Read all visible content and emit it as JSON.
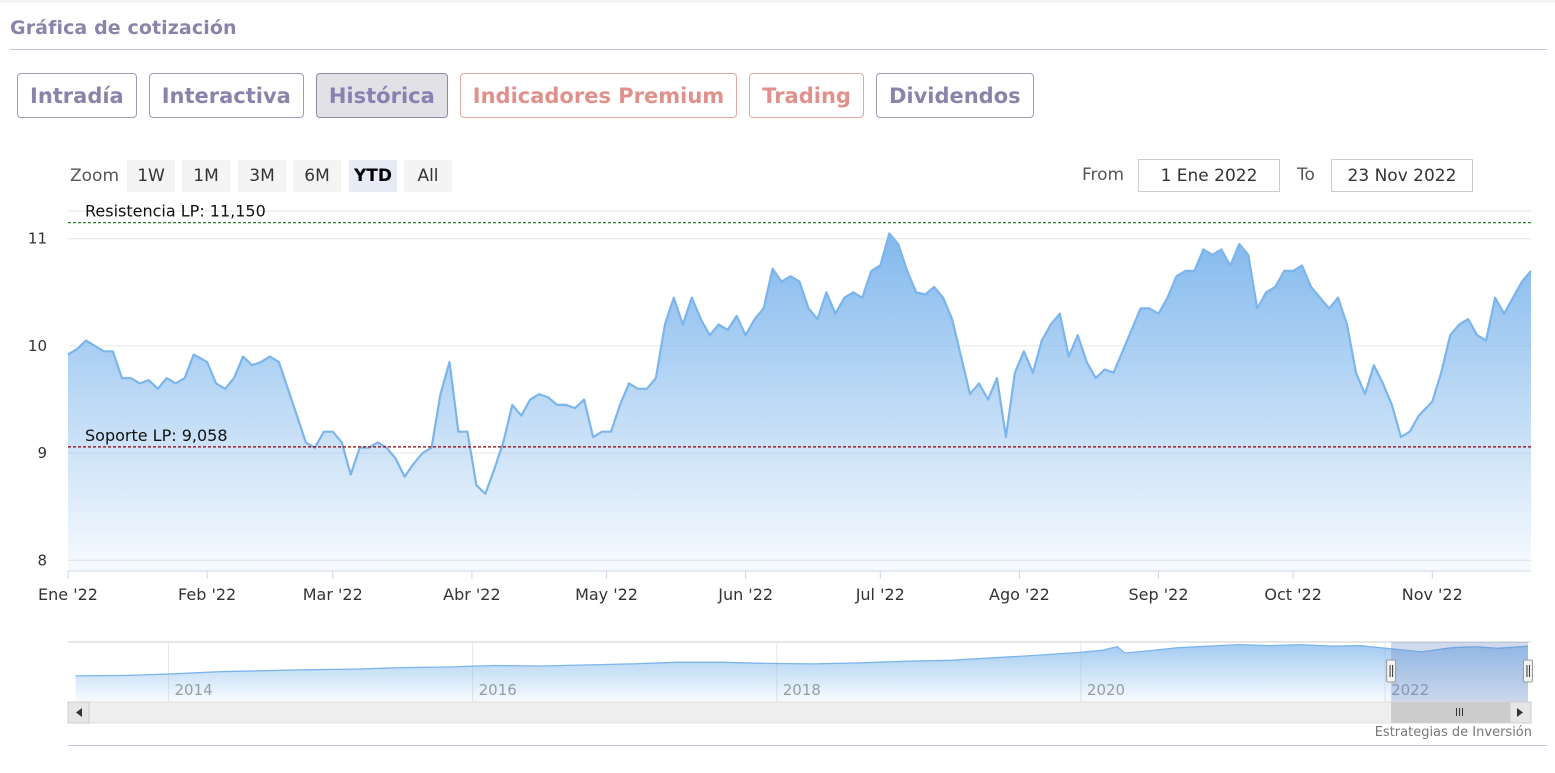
{
  "section": {
    "title": "Gráfica de cotización"
  },
  "tabs": [
    {
      "label": "Intradía",
      "active": false,
      "premium": false
    },
    {
      "label": "Interactiva",
      "active": false,
      "premium": false
    },
    {
      "label": "Histórica",
      "active": true,
      "premium": false
    },
    {
      "label": "Indicadores Premium",
      "active": false,
      "premium": true
    },
    {
      "label": "Trading",
      "active": false,
      "premium": true
    },
    {
      "label": "Dividendos",
      "active": false,
      "premium": false
    }
  ],
  "range_selector": {
    "zoom_label": "Zoom",
    "buttons": [
      "1W",
      "1M",
      "3M",
      "6M",
      "YTD",
      "All"
    ],
    "selected": "YTD",
    "from_label": "From",
    "from_value": "1 Ene 2022",
    "to_label": "To",
    "to_value": "23 Nov 2022"
  },
  "credits": "Estrategias de Inversión",
  "colors": {
    "accent": "#8a84ab",
    "premium": "#e1918b",
    "series_line": "#7cb5ec",
    "resistance_line": "#2e7d32",
    "support_line": "#8b0000"
  },
  "chart_data": {
    "type": "area",
    "series_name": "",
    "x_ticks": [
      "Ene '22",
      "Feb '22",
      "Mar '22",
      "Abr '22",
      "May '22",
      "Jun '22",
      "Jul '22",
      "Ago '22",
      "Sep '22",
      "Oct '22",
      "Nov '22"
    ],
    "x_tick_dates": [
      "2022-01-01",
      "2022-02-01",
      "2022-03-01",
      "2022-04-01",
      "2022-05-01",
      "2022-06-01",
      "2022-07-01",
      "2022-08-01",
      "2022-09-01",
      "2022-10-01",
      "2022-11-01"
    ],
    "y_ticks": [
      8,
      9,
      10,
      11
    ],
    "ylim": [
      7.9,
      11.1
    ],
    "xlim": [
      "2022-01-01",
      "2022-11-23"
    ],
    "grid": true,
    "plot_lines": [
      {
        "label": "Resistencia LP: 11,150",
        "value": 11.15
      },
      {
        "label": "Soporte LP: 9,058",
        "value": 9.058
      }
    ],
    "points": [
      [
        "2022-01-01",
        9.92
      ],
      [
        "2022-01-03",
        9.97
      ],
      [
        "2022-01-05",
        10.05
      ],
      [
        "2022-01-07",
        10.0
      ],
      [
        "2022-01-09",
        9.95
      ],
      [
        "2022-01-11",
        9.95
      ],
      [
        "2022-01-13",
        9.7
      ],
      [
        "2022-01-15",
        9.7
      ],
      [
        "2022-01-17",
        9.65
      ],
      [
        "2022-01-19",
        9.68
      ],
      [
        "2022-01-21",
        9.6
      ],
      [
        "2022-01-23",
        9.7
      ],
      [
        "2022-01-25",
        9.65
      ],
      [
        "2022-01-27",
        9.7
      ],
      [
        "2022-01-29",
        9.92
      ],
      [
        "2022-02-01",
        9.85
      ],
      [
        "2022-02-03",
        9.65
      ],
      [
        "2022-02-05",
        9.6
      ],
      [
        "2022-02-07",
        9.7
      ],
      [
        "2022-02-09",
        9.9
      ],
      [
        "2022-02-11",
        9.82
      ],
      [
        "2022-02-13",
        9.85
      ],
      [
        "2022-02-15",
        9.9
      ],
      [
        "2022-02-17",
        9.85
      ],
      [
        "2022-02-19",
        9.6
      ],
      [
        "2022-02-21",
        9.35
      ],
      [
        "2022-02-23",
        9.1
      ],
      [
        "2022-02-25",
        9.05
      ],
      [
        "2022-02-27",
        9.2
      ],
      [
        "2022-03-01",
        9.2
      ],
      [
        "2022-03-03",
        9.1
      ],
      [
        "2022-03-05",
        8.8
      ],
      [
        "2022-03-07",
        9.05
      ],
      [
        "2022-03-09",
        9.05
      ],
      [
        "2022-03-11",
        9.1
      ],
      [
        "2022-03-13",
        9.05
      ],
      [
        "2022-03-15",
        8.95
      ],
      [
        "2022-03-17",
        8.78
      ],
      [
        "2022-03-19",
        8.9
      ],
      [
        "2022-03-21",
        9.0
      ],
      [
        "2022-03-23",
        9.05
      ],
      [
        "2022-03-25",
        9.55
      ],
      [
        "2022-03-27",
        9.85
      ],
      [
        "2022-03-29",
        9.2
      ],
      [
        "2022-03-31",
        9.2
      ],
      [
        "2022-04-02",
        8.7
      ],
      [
        "2022-04-04",
        8.62
      ],
      [
        "2022-04-06",
        8.85
      ],
      [
        "2022-04-08",
        9.1
      ],
      [
        "2022-04-10",
        9.45
      ],
      [
        "2022-04-12",
        9.35
      ],
      [
        "2022-04-14",
        9.5
      ],
      [
        "2022-04-16",
        9.55
      ],
      [
        "2022-04-18",
        9.52
      ],
      [
        "2022-04-20",
        9.45
      ],
      [
        "2022-04-22",
        9.45
      ],
      [
        "2022-04-24",
        9.42
      ],
      [
        "2022-04-26",
        9.5
      ],
      [
        "2022-04-28",
        9.15
      ],
      [
        "2022-04-30",
        9.2
      ],
      [
        "2022-05-02",
        9.2
      ],
      [
        "2022-05-04",
        9.45
      ],
      [
        "2022-05-06",
        9.65
      ],
      [
        "2022-05-08",
        9.6
      ],
      [
        "2022-05-10",
        9.6
      ],
      [
        "2022-05-12",
        9.7
      ],
      [
        "2022-05-14",
        10.2
      ],
      [
        "2022-05-16",
        10.45
      ],
      [
        "2022-05-18",
        10.2
      ],
      [
        "2022-05-20",
        10.45
      ],
      [
        "2022-05-22",
        10.25
      ],
      [
        "2022-05-24",
        10.1
      ],
      [
        "2022-05-26",
        10.2
      ],
      [
        "2022-05-28",
        10.15
      ],
      [
        "2022-05-30",
        10.28
      ],
      [
        "2022-06-01",
        10.1
      ],
      [
        "2022-06-03",
        10.25
      ],
      [
        "2022-06-05",
        10.35
      ],
      [
        "2022-06-07",
        10.72
      ],
      [
        "2022-06-09",
        10.6
      ],
      [
        "2022-06-11",
        10.65
      ],
      [
        "2022-06-13",
        10.6
      ],
      [
        "2022-06-15",
        10.35
      ],
      [
        "2022-06-17",
        10.25
      ],
      [
        "2022-06-19",
        10.5
      ],
      [
        "2022-06-21",
        10.3
      ],
      [
        "2022-06-23",
        10.45
      ],
      [
        "2022-06-25",
        10.5
      ],
      [
        "2022-06-27",
        10.45
      ],
      [
        "2022-06-29",
        10.7
      ],
      [
        "2022-07-01",
        10.75
      ],
      [
        "2022-07-03",
        11.05
      ],
      [
        "2022-07-05",
        10.95
      ],
      [
        "2022-07-07",
        10.7
      ],
      [
        "2022-07-09",
        10.5
      ],
      [
        "2022-07-11",
        10.48
      ],
      [
        "2022-07-13",
        10.55
      ],
      [
        "2022-07-15",
        10.45
      ],
      [
        "2022-07-17",
        10.25
      ],
      [
        "2022-07-19",
        9.9
      ],
      [
        "2022-07-21",
        9.55
      ],
      [
        "2022-07-23",
        9.65
      ],
      [
        "2022-07-25",
        9.5
      ],
      [
        "2022-07-27",
        9.7
      ],
      [
        "2022-07-29",
        9.15
      ],
      [
        "2022-07-31",
        9.75
      ],
      [
        "2022-08-02",
        9.95
      ],
      [
        "2022-08-04",
        9.75
      ],
      [
        "2022-08-06",
        10.05
      ],
      [
        "2022-08-08",
        10.2
      ],
      [
        "2022-08-10",
        10.3
      ],
      [
        "2022-08-12",
        9.9
      ],
      [
        "2022-08-14",
        10.1
      ],
      [
        "2022-08-16",
        9.85
      ],
      [
        "2022-08-18",
        9.7
      ],
      [
        "2022-08-20",
        9.78
      ],
      [
        "2022-08-22",
        9.75
      ],
      [
        "2022-08-24",
        9.95
      ],
      [
        "2022-08-26",
        10.15
      ],
      [
        "2022-08-28",
        10.35
      ],
      [
        "2022-08-30",
        10.35
      ],
      [
        "2022-09-01",
        10.3
      ],
      [
        "2022-09-03",
        10.45
      ],
      [
        "2022-09-05",
        10.65
      ],
      [
        "2022-09-07",
        10.7
      ],
      [
        "2022-09-09",
        10.7
      ],
      [
        "2022-09-11",
        10.9
      ],
      [
        "2022-09-13",
        10.85
      ],
      [
        "2022-09-15",
        10.9
      ],
      [
        "2022-09-17",
        10.75
      ],
      [
        "2022-09-19",
        10.95
      ],
      [
        "2022-09-21",
        10.85
      ],
      [
        "2022-09-23",
        10.35
      ],
      [
        "2022-09-25",
        10.5
      ],
      [
        "2022-09-27",
        10.55
      ],
      [
        "2022-09-29",
        10.7
      ],
      [
        "2022-10-01",
        10.7
      ],
      [
        "2022-10-03",
        10.75
      ],
      [
        "2022-10-05",
        10.55
      ],
      [
        "2022-10-07",
        10.45
      ],
      [
        "2022-10-09",
        10.35
      ],
      [
        "2022-10-11",
        10.45
      ],
      [
        "2022-10-13",
        10.2
      ],
      [
        "2022-10-15",
        9.75
      ],
      [
        "2022-10-17",
        9.55
      ],
      [
        "2022-10-19",
        9.82
      ],
      [
        "2022-10-21",
        9.65
      ],
      [
        "2022-10-23",
        9.45
      ],
      [
        "2022-10-25",
        9.15
      ],
      [
        "2022-10-27",
        9.2
      ],
      [
        "2022-10-29",
        9.35
      ],
      [
        "2022-11-01",
        9.48
      ],
      [
        "2022-11-03",
        9.75
      ],
      [
        "2022-11-05",
        10.1
      ],
      [
        "2022-11-07",
        10.2
      ],
      [
        "2022-11-09",
        10.25
      ],
      [
        "2022-11-11",
        10.1
      ],
      [
        "2022-11-13",
        10.05
      ],
      [
        "2022-11-15",
        10.45
      ],
      [
        "2022-11-17",
        10.3
      ],
      [
        "2022-11-19",
        10.45
      ],
      [
        "2022-11-21",
        10.6
      ],
      [
        "2022-11-23",
        10.7
      ]
    ],
    "navigator": {
      "x_ticks": [
        "2014",
        "2016",
        "2018",
        "2020",
        "2022"
      ],
      "x_tick_years": [
        2014,
        2016,
        2018,
        2020,
        2022
      ],
      "xlim_years": [
        2013.3,
        2022.92
      ],
      "ylim": [
        0,
        11.5
      ],
      "selection_years": [
        2022.0,
        2022.9
      ],
      "points": [
        [
          2013.35,
          5.0
        ],
        [
          2013.7,
          5.1
        ],
        [
          2014.0,
          5.4
        ],
        [
          2014.3,
          5.8
        ],
        [
          2014.6,
          6.0
        ],
        [
          2014.9,
          6.2
        ],
        [
          2015.2,
          6.3
        ],
        [
          2015.5,
          6.6
        ],
        [
          2015.8,
          6.7
        ],
        [
          2016.1,
          7.0
        ],
        [
          2016.4,
          6.9
        ],
        [
          2016.7,
          7.1
        ],
        [
          2017.0,
          7.3
        ],
        [
          2017.3,
          7.6
        ],
        [
          2017.6,
          7.6
        ],
        [
          2017.9,
          7.4
        ],
        [
          2018.2,
          7.3
        ],
        [
          2018.5,
          7.5
        ],
        [
          2018.8,
          7.8
        ],
        [
          2019.1,
          8.0
        ],
        [
          2019.4,
          8.5
        ],
        [
          2019.7,
          9.0
        ],
        [
          2019.95,
          9.5
        ],
        [
          2020.1,
          9.9
        ],
        [
          2020.2,
          10.6
        ],
        [
          2020.25,
          9.4
        ],
        [
          2020.4,
          9.8
        ],
        [
          2020.6,
          10.4
        ],
        [
          2020.8,
          10.7
        ],
        [
          2021.0,
          11.0
        ],
        [
          2021.2,
          10.8
        ],
        [
          2021.4,
          11.0
        ],
        [
          2021.6,
          10.7
        ],
        [
          2021.8,
          10.8
        ],
        [
          2022.0,
          10.2
        ],
        [
          2022.2,
          9.6
        ],
        [
          2022.4,
          10.4
        ],
        [
          2022.55,
          10.6
        ],
        [
          2022.7,
          10.3
        ],
        [
          2022.9,
          10.7
        ]
      ]
    }
  }
}
